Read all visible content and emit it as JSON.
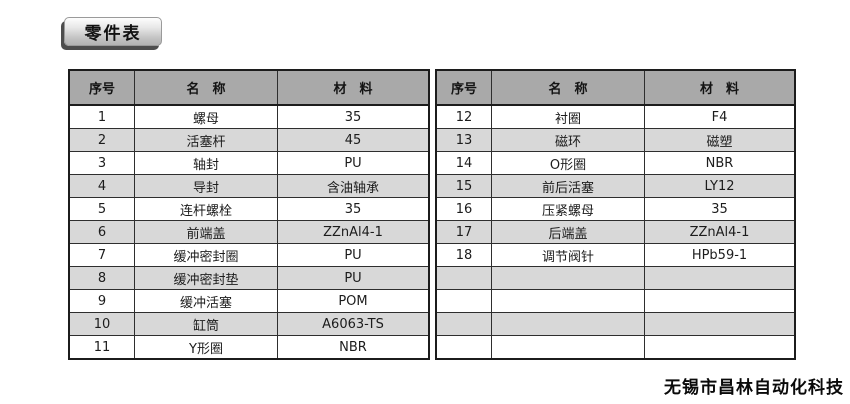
{
  "title_badge": {
    "label": "零件表"
  },
  "headers": {
    "no": "序号",
    "name": "名　称",
    "material": "材　料"
  },
  "left_table": {
    "rows": [
      {
        "no": "1",
        "name": "螺母",
        "material": "35"
      },
      {
        "no": "2",
        "name": "活塞杆",
        "material": "45"
      },
      {
        "no": "3",
        "name": "轴封",
        "material": "PU"
      },
      {
        "no": "4",
        "name": "导封",
        "material": "含油轴承"
      },
      {
        "no": "5",
        "name": "连杆螺栓",
        "material": "35"
      },
      {
        "no": "6",
        "name": "前端盖",
        "material": "ZZnAl4-1"
      },
      {
        "no": "7",
        "name": "缓冲密封圈",
        "material": "PU"
      },
      {
        "no": "8",
        "name": "缓冲密封垫",
        "material": "PU"
      },
      {
        "no": "9",
        "name": "缓冲活塞",
        "material": "POM"
      },
      {
        "no": "10",
        "name": "缸筒",
        "material": "A6063-TS"
      },
      {
        "no": "11",
        "name": "Y形圈",
        "material": "NBR"
      }
    ]
  },
  "right_table": {
    "rows": [
      {
        "no": "12",
        "name": "衬圈",
        "material": "F4"
      },
      {
        "no": "13",
        "name": "磁环",
        "material": "磁塑"
      },
      {
        "no": "14",
        "name": "O形圈",
        "material": "NBR"
      },
      {
        "no": "15",
        "name": "前后活塞",
        "material": "LY12"
      },
      {
        "no": "16",
        "name": "压紧螺母",
        "material": "35"
      },
      {
        "no": "17",
        "name": "后端盖",
        "material": "ZZnAl4-1"
      },
      {
        "no": "18",
        "name": "调节阀针",
        "material": "HPb59-1"
      },
      {
        "no": "",
        "name": "",
        "material": ""
      },
      {
        "no": "",
        "name": "",
        "material": ""
      },
      {
        "no": "",
        "name": "",
        "material": ""
      },
      {
        "no": "",
        "name": "",
        "material": ""
      }
    ]
  },
  "footer": {
    "brand": "无锡市昌林自动化科技"
  },
  "colors": {
    "header_bg": "#a9a9a9",
    "stripe_bg": "#d8d8d8",
    "border": "#1c1c1c",
    "badge_shadow": "#4d4d4d"
  }
}
